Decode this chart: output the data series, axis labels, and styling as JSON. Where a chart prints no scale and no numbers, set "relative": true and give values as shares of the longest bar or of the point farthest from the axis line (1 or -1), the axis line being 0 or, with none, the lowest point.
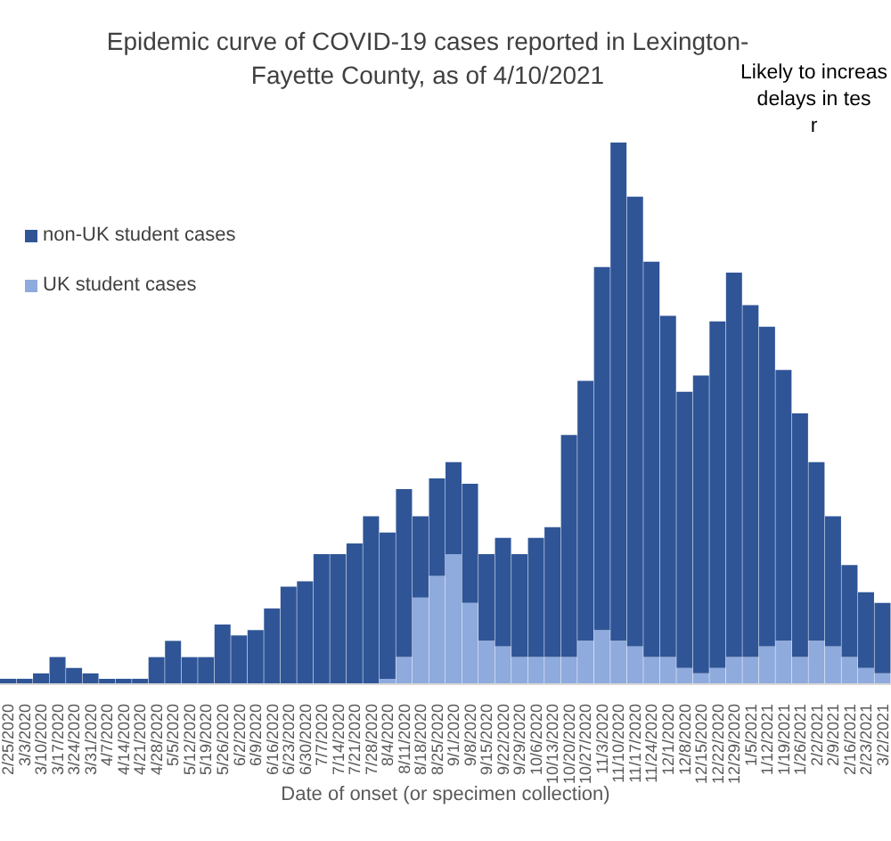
{
  "chart_data": {
    "type": "bar",
    "title": "Epidemic curve of COVID-19 cases reported in Lexington-Fayette County, as of 4/10/2021",
    "xlabel": "Date of onset (or specimen collection)",
    "annotations": [
      "Likely to increas\ndelays in tes\nr"
    ],
    "relative": true,
    "stacked": true,
    "legend": "top left",
    "grid": false,
    "categories": [
      "2/25/2020",
      "3/3/2020",
      "3/10/2020",
      "3/17/2020",
      "3/24/2020",
      "3/31/2020",
      "4/7/2020",
      "4/14/2020",
      "4/21/2020",
      "4/28/2020",
      "5/5/2020",
      "5/12/2020",
      "5/19/2020",
      "5/26/2020",
      "6/2/2020",
      "6/9/2020",
      "6/16/2020",
      "6/23/2020",
      "6/30/2020",
      "7/7/2020",
      "7/14/2020",
      "7/21/2020",
      "7/28/2020",
      "8/4/2020",
      "8/11/2020",
      "8/18/2020",
      "8/25/2020",
      "9/1/2020",
      "9/8/2020",
      "9/15/2020",
      "9/22/2020",
      "9/29/2020",
      "10/6/2020",
      "10/13/2020",
      "10/20/2020",
      "10/27/2020",
      "11/3/2020",
      "11/10/2020",
      "11/17/2020",
      "11/24/2020",
      "12/1/2020",
      "12/8/2020",
      "12/15/2020",
      "12/22/2020",
      "12/29/2020",
      "1/5/2021",
      "1/12/2021",
      "1/19/2021",
      "1/26/2021",
      "2/2/2021",
      "2/9/2021",
      "2/16/2021",
      "2/23/2021",
      "3/2/2021"
    ],
    "series": [
      {
        "name": "UK student cases",
        "color": "#8faadc",
        "values": [
          0,
          0,
          0,
          0,
          0,
          0,
          0,
          0,
          0,
          0,
          0,
          0,
          0,
          0,
          0,
          0,
          0,
          0,
          0,
          0,
          0,
          0,
          0,
          0.01,
          0.05,
          0.16,
          0.2,
          0.24,
          0.15,
          0.08,
          0.07,
          0.05,
          0.05,
          0.05,
          0.05,
          0.08,
          0.1,
          0.08,
          0.07,
          0.05,
          0.05,
          0.03,
          0.02,
          0.03,
          0.05,
          0.05,
          0.07,
          0.08,
          0.05,
          0.08,
          0.07,
          0.05,
          0.03,
          0.02
        ]
      },
      {
        "name": "non-UK student cases",
        "color": "#2f5597",
        "values": [
          0.01,
          0.01,
          0.02,
          0.05,
          0.03,
          0.02,
          0.01,
          0.01,
          0.01,
          0.05,
          0.08,
          0.05,
          0.05,
          0.11,
          0.09,
          0.1,
          0.14,
          0.18,
          0.19,
          0.24,
          0.24,
          0.26,
          0.31,
          0.27,
          0.31,
          0.15,
          0.18,
          0.17,
          0.22,
          0.16,
          0.2,
          0.19,
          0.22,
          0.24,
          0.41,
          0.48,
          0.67,
          0.92,
          0.83,
          0.73,
          0.63,
          0.51,
          0.55,
          0.64,
          0.71,
          0.65,
          0.59,
          0.5,
          0.45,
          0.33,
          0.24,
          0.17,
          0.14,
          0.13
        ]
      }
    ]
  }
}
